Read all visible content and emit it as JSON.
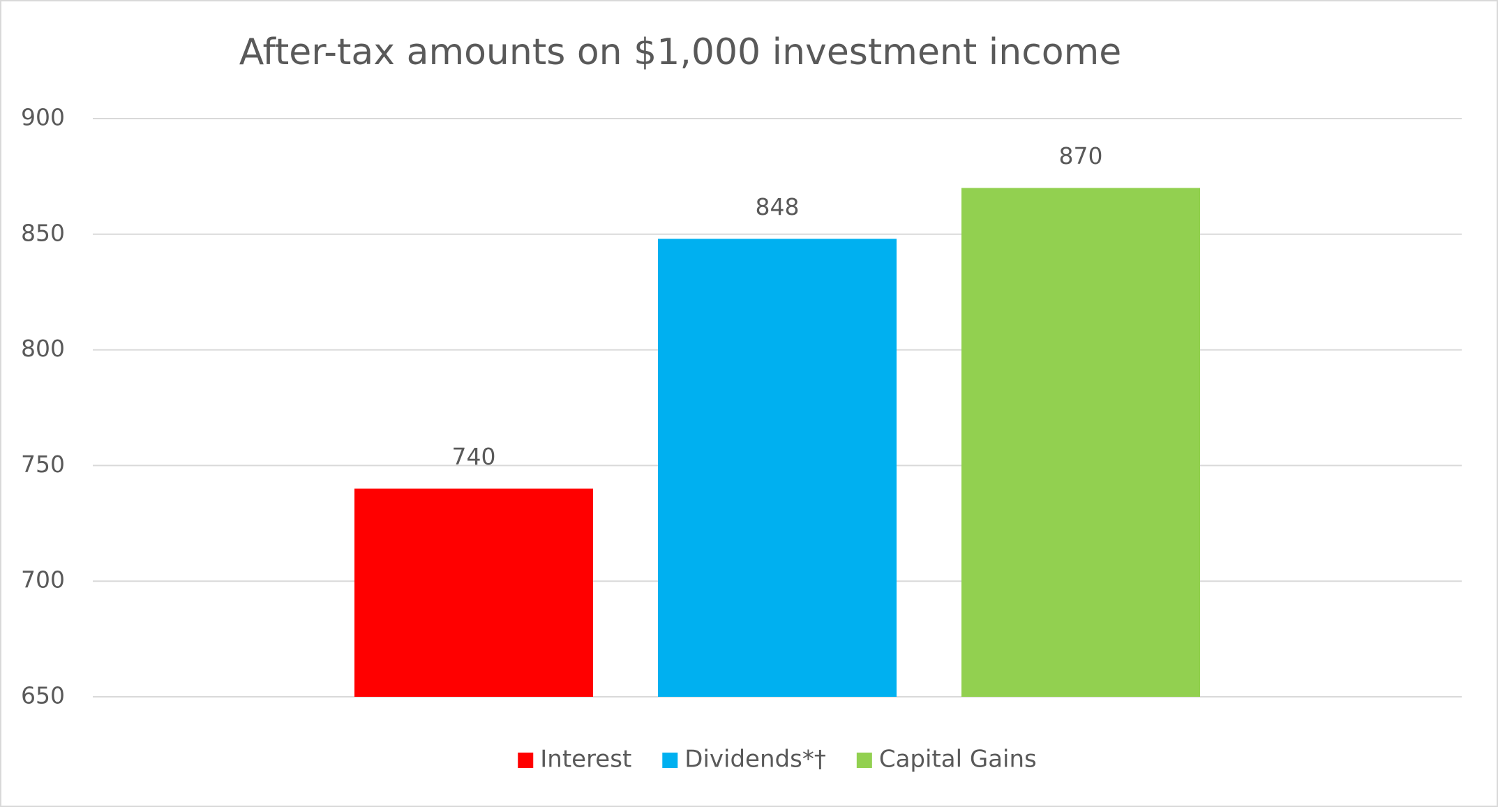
{
  "chart_data": {
    "type": "bar",
    "title": "After-tax amounts on $1,000 investment income",
    "categories": [
      null
    ],
    "series": [
      {
        "name": "Interest",
        "color": "#ff0000",
        "values": [
          740
        ]
      },
      {
        "name": "Dividends*†",
        "color": "#00b0f0",
        "values": [
          848
        ]
      },
      {
        "name": "Capital Gains",
        "color": "#92d050",
        "values": [
          870
        ]
      }
    ],
    "ylim": [
      650,
      900
    ],
    "yticks": [
      650,
      700,
      750,
      800,
      850,
      900
    ],
    "grid": true,
    "legend": "bottom"
  }
}
